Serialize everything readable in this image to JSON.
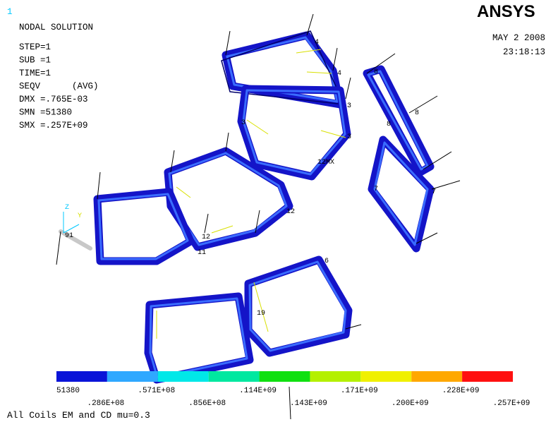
{
  "window_number": "1",
  "logo": "ANSYS",
  "info": [
    "NODAL SOLUTION",
    "STEP=1",
    "SUB =1",
    "TIME=1",
    "SEQV      (AVG)",
    "DMX =.765E-03",
    "SMN =51380",
    "SMX =.257E+09"
  ],
  "date": "MAY  2 2008",
  "time": "23:18:13",
  "triad": {
    "z": "Z",
    "y": "Y"
  },
  "node_labels": [
    "4",
    "4",
    "3",
    "3",
    "3",
    "12MX",
    "8",
    "8",
    "8",
    "7",
    "7",
    "12",
    "12",
    "11",
    "91",
    "6",
    "19"
  ],
  "legend": {
    "colors": [
      "#0a14d8",
      "#2fa8ff",
      "#00e8e8",
      "#00e8a0",
      "#10e010",
      "#b4f000",
      "#f0f000",
      "#ffa800",
      "#ff1010"
    ],
    "labels": [
      "51380",
      ".286E+08",
      ".571E+08",
      ".856E+08",
      ".114E+09",
      ".143E+09",
      ".171E+09",
      ".200E+09",
      ".228E+09",
      ".257E+09"
    ]
  },
  "caption": "All Coils  EM and CD mu=0.3"
}
